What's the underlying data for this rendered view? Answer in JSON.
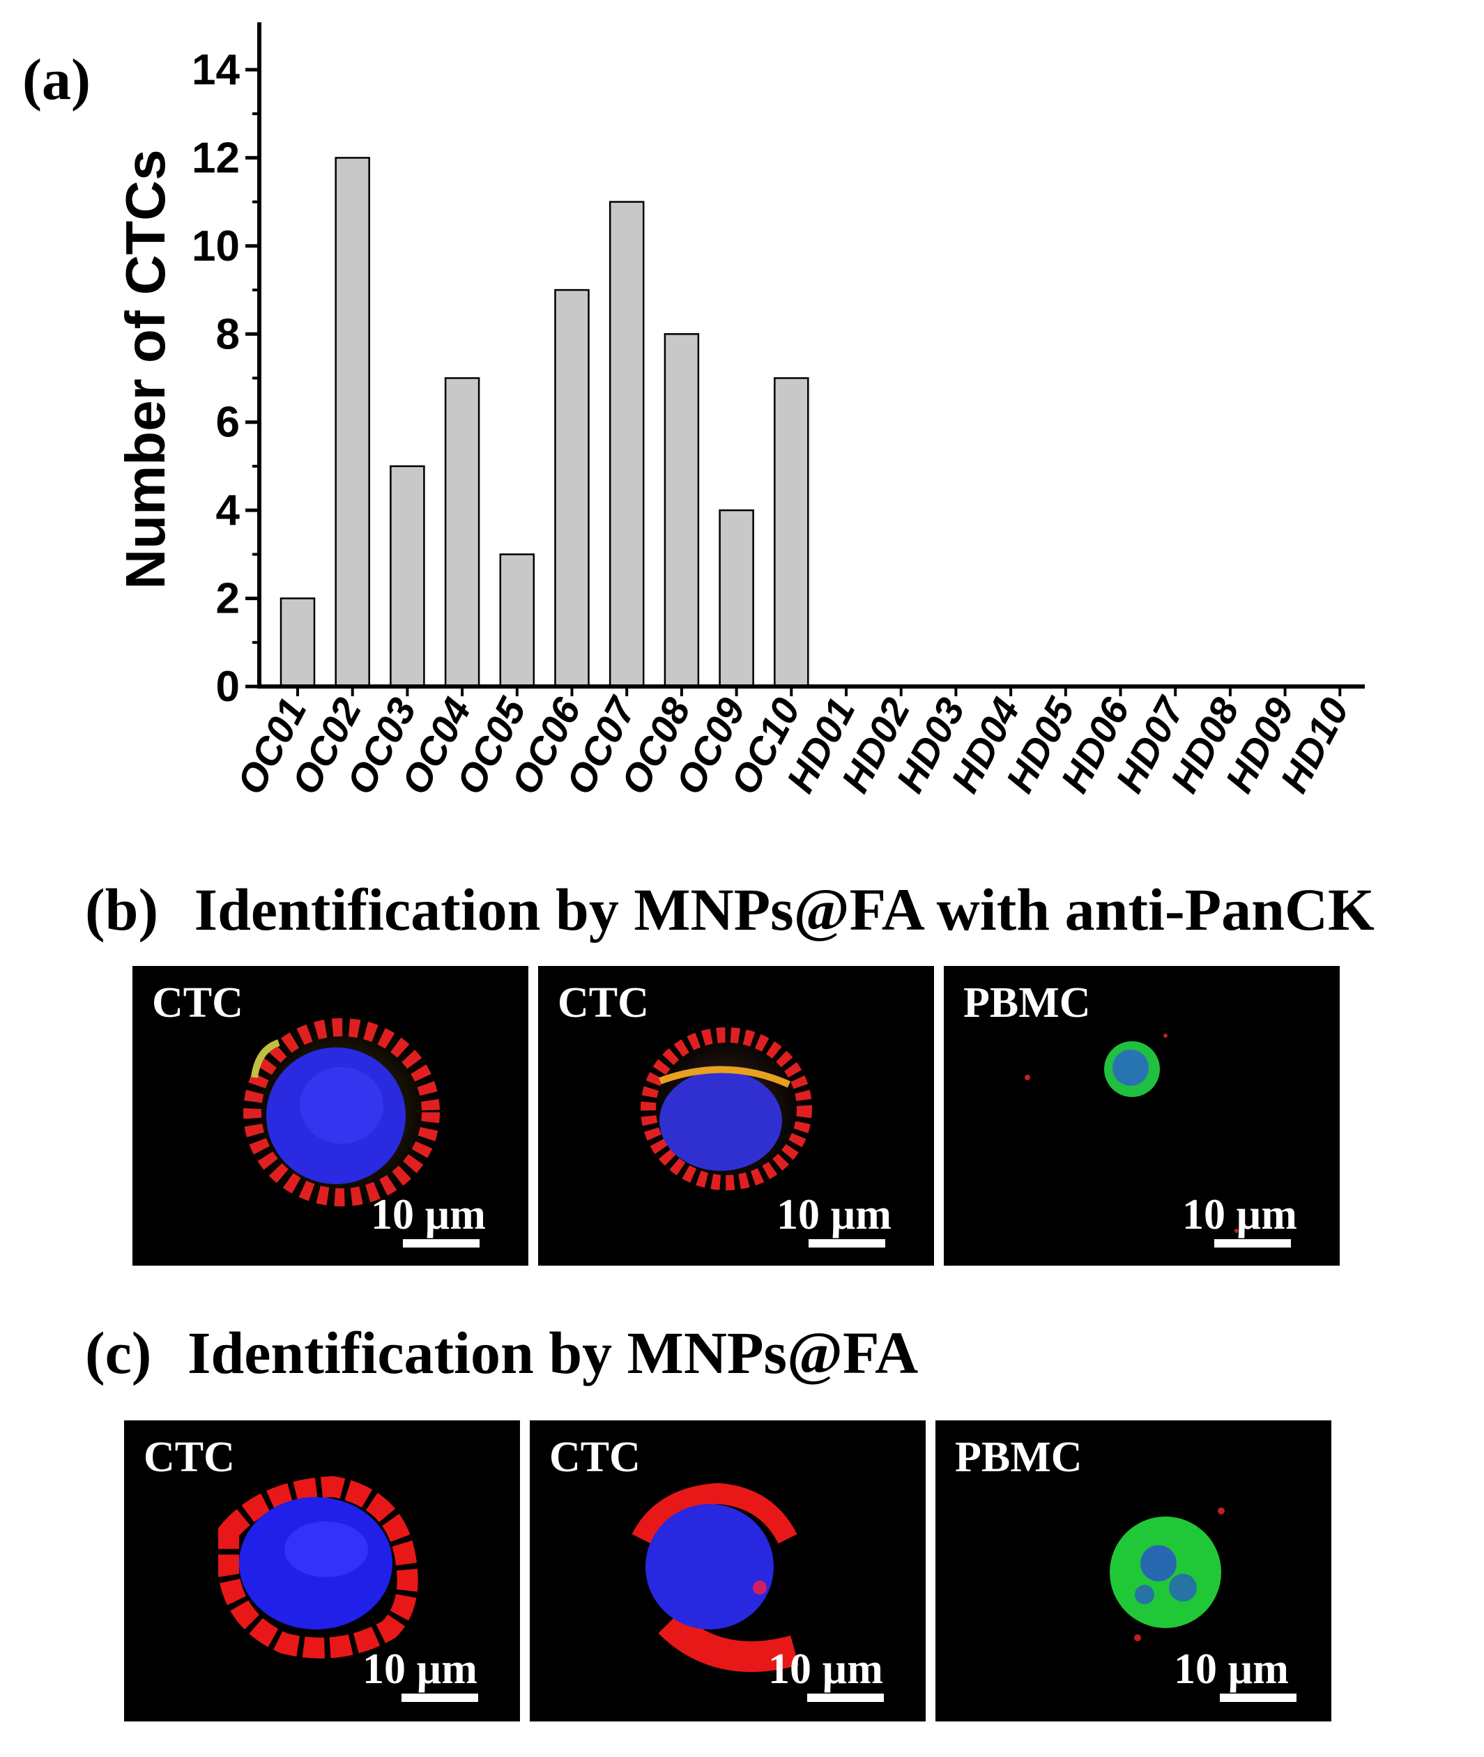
{
  "panel_a": {
    "label": "(a)",
    "chart_data": {
      "type": "bar",
      "categories": [
        "OC01",
        "OC02",
        "OC03",
        "OC04",
        "OC05",
        "OC06",
        "OC07",
        "OC08",
        "OC09",
        "OC10",
        "HD01",
        "HD02",
        "HD03",
        "HD04",
        "HD05",
        "HD06",
        "HD07",
        "HD08",
        "HD09",
        "HD10"
      ],
      "values": [
        2,
        12,
        5,
        7,
        3,
        9,
        11,
        8,
        4,
        7,
        0,
        0,
        0,
        0,
        0,
        0,
        0,
        0,
        0,
        0
      ],
      "xlabel": "",
      "ylabel": "Number of CTCs",
      "ylim": [
        0,
        14
      ],
      "yticks": [
        0,
        2,
        4,
        6,
        8,
        10,
        12,
        14
      ],
      "bar_color": "#c8c8c8",
      "grid": false
    }
  },
  "panel_b": {
    "label": "(b)",
    "title": "Identification by MNPs@FA with anti-PanCK",
    "images": [
      {
        "label": "CTC",
        "scale": "10 µm",
        "stain": "ctc-with-panck"
      },
      {
        "label": "CTC",
        "scale": "10 µm",
        "stain": "ctc-with-panck"
      },
      {
        "label": "PBMC",
        "scale": "10 µm",
        "stain": "pbmc-small"
      }
    ]
  },
  "panel_c": {
    "label": "(c)",
    "title": "Identification by MNPs@FA",
    "images": [
      {
        "label": "CTC",
        "scale": "10 µm",
        "stain": "ctc-mnp"
      },
      {
        "label": "CTC",
        "scale": "10 µm",
        "stain": "ctc-mnp"
      },
      {
        "label": "PBMC",
        "scale": "10 µm",
        "stain": "pbmc-large"
      }
    ]
  },
  "colors": {
    "nucleus": "#1a1aff",
    "membrane": "#ff2020",
    "cytokeratin": "#20d040",
    "background": "#000000"
  }
}
